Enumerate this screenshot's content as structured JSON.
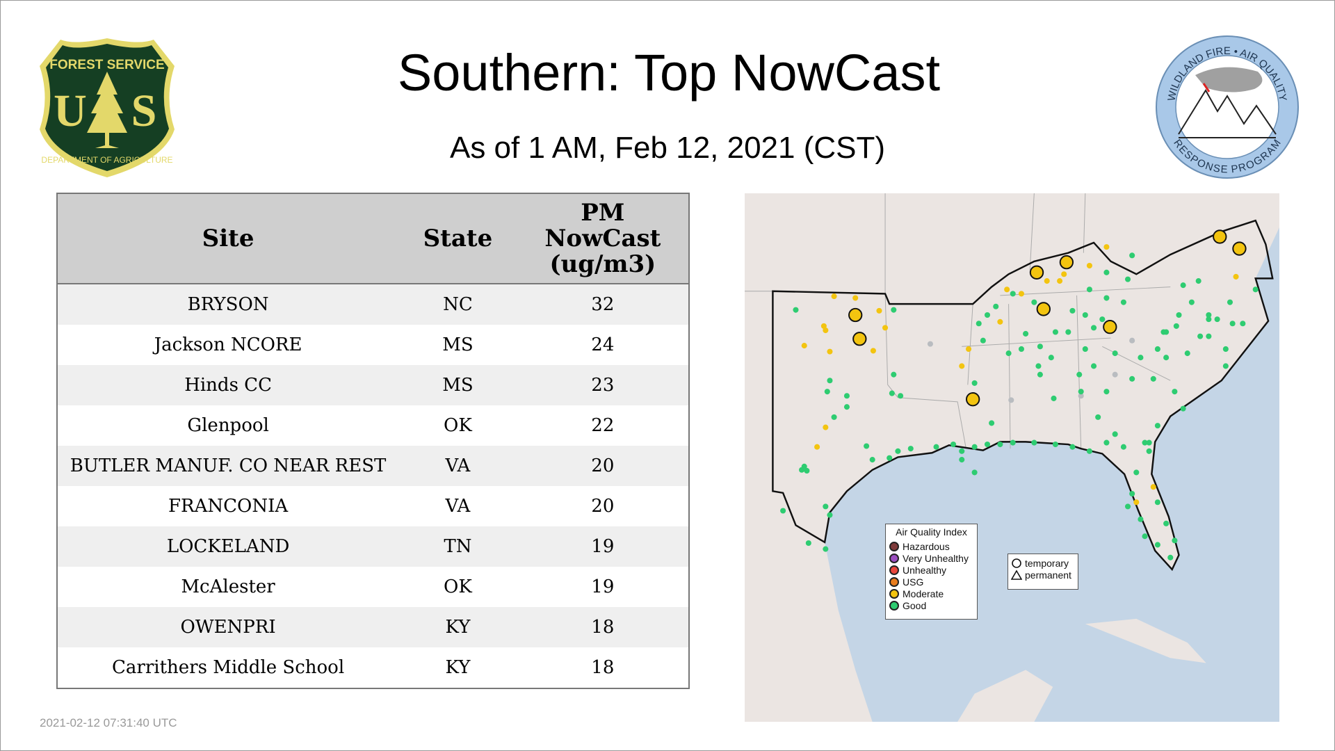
{
  "header": {
    "title": "Southern: Top NowCast",
    "subtitle": "As of  1 AM, Feb 12, 2021 (CST)"
  },
  "logos": {
    "left": "Forest Service U S Department of Agriculture",
    "right": "Wildland Fire Air Quality Response Program"
  },
  "table": {
    "columns": [
      "Site",
      "State",
      "PM NowCast (ug/m3)"
    ],
    "rows": [
      {
        "site": "BRYSON",
        "state": "NC",
        "value": "32"
      },
      {
        "site": "Jackson NCORE",
        "state": "MS",
        "value": "24"
      },
      {
        "site": "Hinds CC",
        "state": "MS",
        "value": "23"
      },
      {
        "site": "Glenpool",
        "state": "OK",
        "value": "22"
      },
      {
        "site": "BUTLER MANUF. CO NEAR REST",
        "state": "VA",
        "value": "20"
      },
      {
        "site": "FRANCONIA",
        "state": "VA",
        "value": "20"
      },
      {
        "site": "LOCKELAND",
        "state": "TN",
        "value": "19"
      },
      {
        "site": "McAlester",
        "state": "OK",
        "value": "19"
      },
      {
        "site": "OWENPRI",
        "state": "KY",
        "value": "18"
      },
      {
        "site": "Carrithers Middle School",
        "state": "KY",
        "value": "18"
      }
    ]
  },
  "map": {
    "legend_title": "Air Quality Index",
    "aqi": [
      {
        "label": "Hazardous",
        "color": "#7e3a3a"
      },
      {
        "label": "Very Unhealthy",
        "color": "#9b4fc0"
      },
      {
        "label": "Unhealthy",
        "color": "#e8463c"
      },
      {
        "label": "USG",
        "color": "#e87d1e"
      },
      {
        "label": "Moderate",
        "color": "#f3c410"
      },
      {
        "label": "Good",
        "color": "#2ecc71"
      }
    ],
    "types": [
      {
        "label": "temporary",
        "icon": "circle-icon"
      },
      {
        "label": "permanent",
        "icon": "triangle-icon"
      }
    ],
    "colors": {
      "land": "#ebe5e2",
      "water": "#c4d5e6"
    }
  },
  "footer": {
    "timestamp": "2021-02-12 07:31:40 UTC"
  }
}
